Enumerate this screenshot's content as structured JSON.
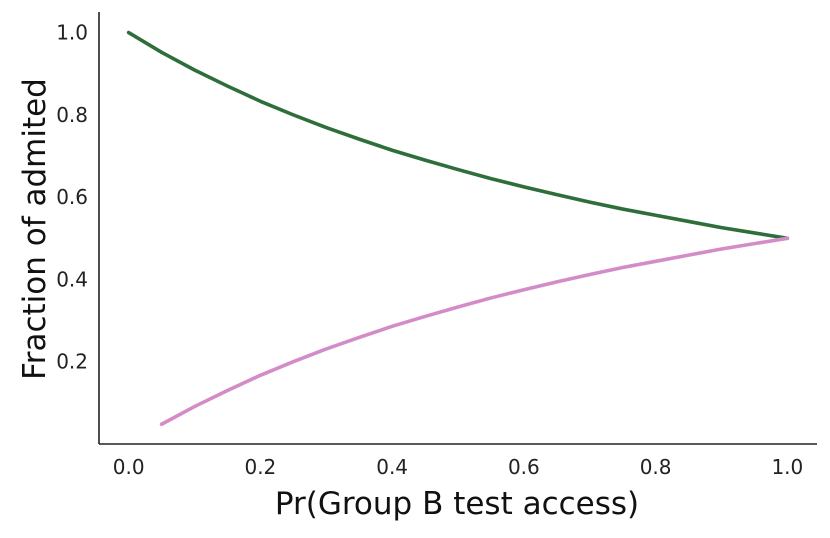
{
  "chart_data": {
    "type": "line",
    "title": "",
    "xlabel": "Pr(Group B test access)",
    "ylabel": "Fraction of admited",
    "xlim": [
      -0.045,
      1.045
    ],
    "ylim": [
      0.0,
      1.05
    ],
    "xticks": [
      0.0,
      0.2,
      0.4,
      0.6,
      0.8,
      1.0
    ],
    "xtick_labels": [
      "0.0",
      "0.2",
      "0.4",
      "0.6",
      "0.8",
      "1.0"
    ],
    "yticks": [
      0.2,
      0.4,
      0.6,
      0.8,
      1.0
    ],
    "ytick_labels": [
      "0.2",
      "0.4",
      "0.6",
      "0.8",
      "1.0"
    ],
    "grid": false,
    "legend": "none",
    "series": [
      {
        "color": "#2e6e3a",
        "x": [
          0.0,
          0.05,
          0.1,
          0.15,
          0.2,
          0.25,
          0.3,
          0.35,
          0.4,
          0.45,
          0.5,
          0.55,
          0.6,
          0.65,
          0.7,
          0.75,
          0.8,
          0.85,
          0.9,
          0.95,
          1.0
        ],
        "y": [
          1.0,
          0.952,
          0.909,
          0.87,
          0.833,
          0.8,
          0.769,
          0.741,
          0.714,
          0.69,
          0.667,
          0.645,
          0.625,
          0.606,
          0.588,
          0.571,
          0.556,
          0.541,
          0.526,
          0.513,
          0.5
        ]
      },
      {
        "color": "#d48cc8",
        "x": [
          0.05,
          0.1,
          0.15,
          0.2,
          0.25,
          0.3,
          0.35,
          0.4,
          0.45,
          0.5,
          0.55,
          0.6,
          0.65,
          0.7,
          0.75,
          0.8,
          0.85,
          0.9,
          0.95,
          1.0
        ],
        "y": [
          0.048,
          0.091,
          0.13,
          0.167,
          0.2,
          0.231,
          0.259,
          0.286,
          0.31,
          0.333,
          0.355,
          0.375,
          0.394,
          0.412,
          0.429,
          0.444,
          0.459,
          0.474,
          0.487,
          0.5
        ]
      }
    ]
  }
}
